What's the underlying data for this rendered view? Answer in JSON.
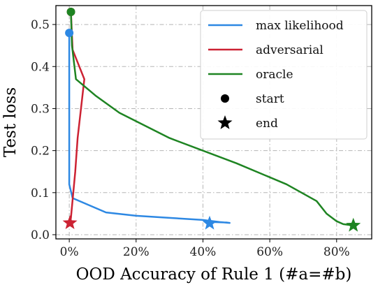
{
  "chart_data": {
    "type": "line",
    "xlabel": "OOD Accuracy of Rule 1 (#a=#b)",
    "ylabel": "Test loss",
    "xlim": [
      -0.04,
      0.905
    ],
    "ylim": [
      -0.01,
      0.545
    ],
    "x_ticks": [
      0,
      0.2,
      0.4,
      0.6,
      0.8
    ],
    "x_tick_labels": [
      "0%",
      "20%",
      "40%",
      "60%",
      "80%"
    ],
    "y_ticks": [
      0.0,
      0.1,
      0.2,
      0.3,
      0.4,
      0.5
    ],
    "y_tick_labels": [
      "0.0",
      "0.1",
      "0.2",
      "0.3",
      "0.4",
      "0.5"
    ],
    "grid": true,
    "legend_position": "top-right",
    "series": [
      {
        "name": "max likelihood",
        "color": "#2d88e3",
        "points": [
          [
            0.0,
            0.48
          ],
          [
            0.0,
            0.12
          ],
          [
            0.01,
            0.087
          ],
          [
            0.06,
            0.07
          ],
          [
            0.11,
            0.053
          ],
          [
            0.2,
            0.045
          ],
          [
            0.3,
            0.04
          ],
          [
            0.4,
            0.035
          ],
          [
            0.45,
            0.03
          ],
          [
            0.48,
            0.028
          ],
          [
            0.47,
            0.029
          ],
          [
            0.43,
            0.03
          ],
          [
            0.42,
            0.027
          ]
        ]
      },
      {
        "name": "adversarial",
        "color": "#cc2233",
        "points": [
          [
            0.005,
            0.53
          ],
          [
            0.01,
            0.44
          ],
          [
            0.045,
            0.37
          ],
          [
            0.025,
            0.23
          ],
          [
            0.018,
            0.15
          ],
          [
            0.005,
            0.04
          ],
          [
            0.002,
            0.028
          ]
        ]
      },
      {
        "name": "oracle",
        "color": "#1e8422",
        "points": [
          [
            0.005,
            0.53
          ],
          [
            0.008,
            0.45
          ],
          [
            0.02,
            0.37
          ],
          [
            0.08,
            0.33
          ],
          [
            0.15,
            0.29
          ],
          [
            0.3,
            0.23
          ],
          [
            0.5,
            0.17
          ],
          [
            0.65,
            0.12
          ],
          [
            0.74,
            0.08
          ],
          [
            0.77,
            0.05
          ],
          [
            0.8,
            0.032
          ],
          [
            0.82,
            0.025
          ],
          [
            0.85,
            0.022
          ]
        ]
      }
    ],
    "markers": [
      {
        "name": "start",
        "shape": "circle"
      },
      {
        "name": "end",
        "shape": "star"
      }
    ]
  }
}
